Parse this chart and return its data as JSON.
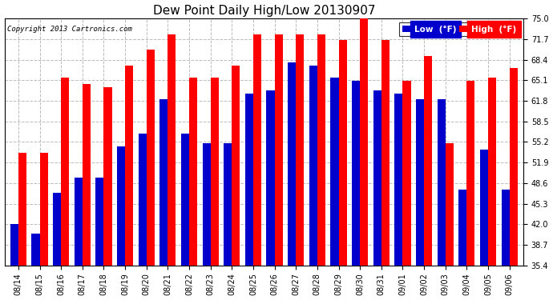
{
  "title": "Dew Point Daily High/Low 20130907",
  "copyright": "Copyright 2013 Cartronics.com",
  "dates": [
    "08/14",
    "08/15",
    "08/16",
    "08/17",
    "08/18",
    "08/19",
    "08/20",
    "08/21",
    "08/22",
    "08/23",
    "08/24",
    "08/25",
    "08/26",
    "08/27",
    "08/28",
    "08/29",
    "08/30",
    "08/31",
    "09/01",
    "09/02",
    "09/03",
    "09/04",
    "09/05",
    "09/06"
  ],
  "high": [
    53.5,
    53.5,
    65.5,
    64.5,
    64.0,
    67.5,
    70.0,
    72.5,
    65.5,
    65.5,
    67.5,
    72.5,
    72.5,
    72.5,
    72.5,
    71.5,
    76.0,
    71.5,
    65.0,
    69.0,
    55.0,
    65.0,
    65.5,
    67.0
  ],
  "low": [
    42.0,
    40.5,
    47.0,
    49.5,
    49.5,
    54.5,
    56.5,
    62.0,
    56.5,
    55.0,
    55.0,
    63.0,
    63.5,
    68.0,
    67.5,
    65.5,
    65.0,
    63.5,
    63.0,
    62.0,
    62.0,
    47.5,
    54.0,
    47.5
  ],
  "ylim": [
    35.4,
    75.0
  ],
  "yticks": [
    35.4,
    38.7,
    42.0,
    45.3,
    48.6,
    51.9,
    55.2,
    58.5,
    61.8,
    65.1,
    68.4,
    71.7,
    75.0
  ],
  "ytick_labels": [
    "35.4",
    "38.7",
    "42.0",
    "45.3",
    "48.6",
    "51.9",
    "55.2",
    "58.5",
    "61.8",
    "65.1",
    "68.4",
    "71.7",
    "75.0"
  ],
  "bar_width": 0.38,
  "high_color": "#ff0000",
  "low_color": "#0000cc",
  "bg_color": "#ffffff",
  "plot_bg_color": "#ffffff",
  "grid_color": "#bbbbbb",
  "title_fontsize": 11,
  "tick_fontsize": 7,
  "legend_fontsize": 7.5
}
